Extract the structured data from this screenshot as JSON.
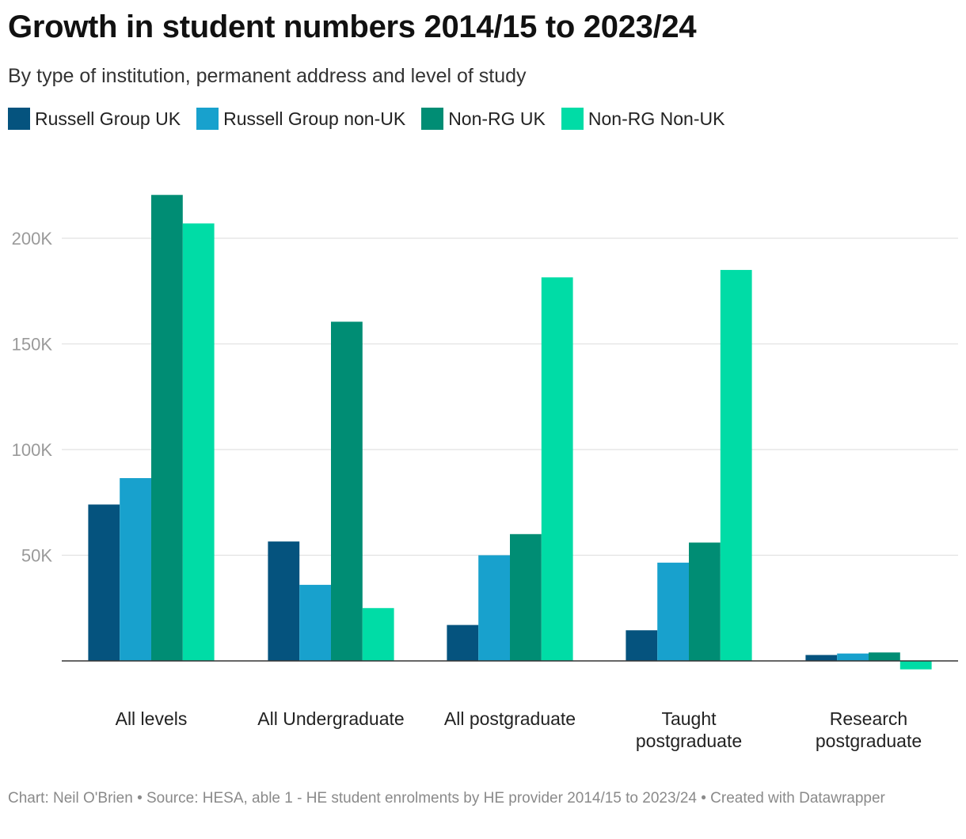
{
  "chart_data": {
    "type": "bar",
    "title": "Growth in student numbers 2014/15 to 2023/24",
    "subtitle": "By type of institution, permanent address and level of study",
    "categories": [
      [
        "All levels"
      ],
      [
        "All Undergraduate"
      ],
      [
        "All postgraduate"
      ],
      [
        "Taught",
        "postgraduate"
      ],
      [
        "Research",
        "postgraduate"
      ]
    ],
    "series": [
      {
        "name": "Russell Group UK",
        "color": "#05537e",
        "values": [
          74000,
          56500,
          17000,
          14500,
          2800
        ]
      },
      {
        "name": "Russell Group non-UK",
        "color": "#18a1cd",
        "values": [
          86500,
          36000,
          50000,
          46500,
          3500
        ]
      },
      {
        "name": "Non-RG UK",
        "color": "#008d74",
        "values": [
          220500,
          160500,
          60000,
          56000,
          4000
        ]
      },
      {
        "name": "Non-RG Non-UK",
        "color": "#00dca6",
        "values": [
          207000,
          25000,
          181500,
          185000,
          -4000
        ]
      }
    ],
    "yticks": [
      50000,
      100000,
      150000,
      200000
    ],
    "ytick_labels": [
      "50K",
      "100K",
      "150K",
      "200K"
    ],
    "ylim": [
      -10000,
      230000
    ],
    "xlabel": "",
    "ylabel": "",
    "grid": true,
    "legend": "top-left"
  },
  "footer": "Chart: Neil O'Brien • Source: HESA, able 1 - HE student enrolments by HE provider 2014/15 to 2023/24 • Created with Datawrapper"
}
